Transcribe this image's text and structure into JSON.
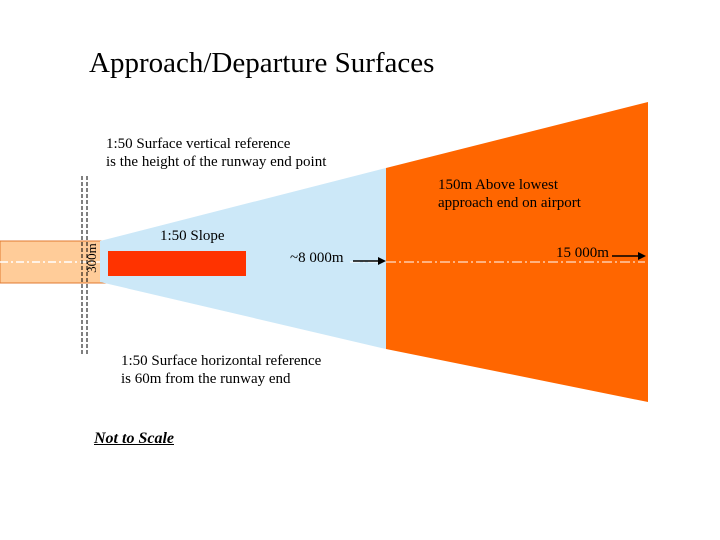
{
  "title": "Approach/Departure Surfaces",
  "labels": {
    "vertical_reference": "1:50 Surface vertical reference\nis the height of the runway end point",
    "above_lowest": "150m Above lowest\napproach end on airport",
    "slope": "1:50 Slope",
    "distance_8000": "~8 000m",
    "distance_15000": "15 000m",
    "horizontal_reference": "1:50 Surface horizontal reference\nis 60m from the runway end",
    "not_to_scale": "Not to Scale",
    "width_300": "300m"
  },
  "colors": {
    "inner_surface": "#cce8f8",
    "outer_surface": "#ff6600",
    "runway": "#ffcc99",
    "slope_bar": "#ff3300"
  }
}
